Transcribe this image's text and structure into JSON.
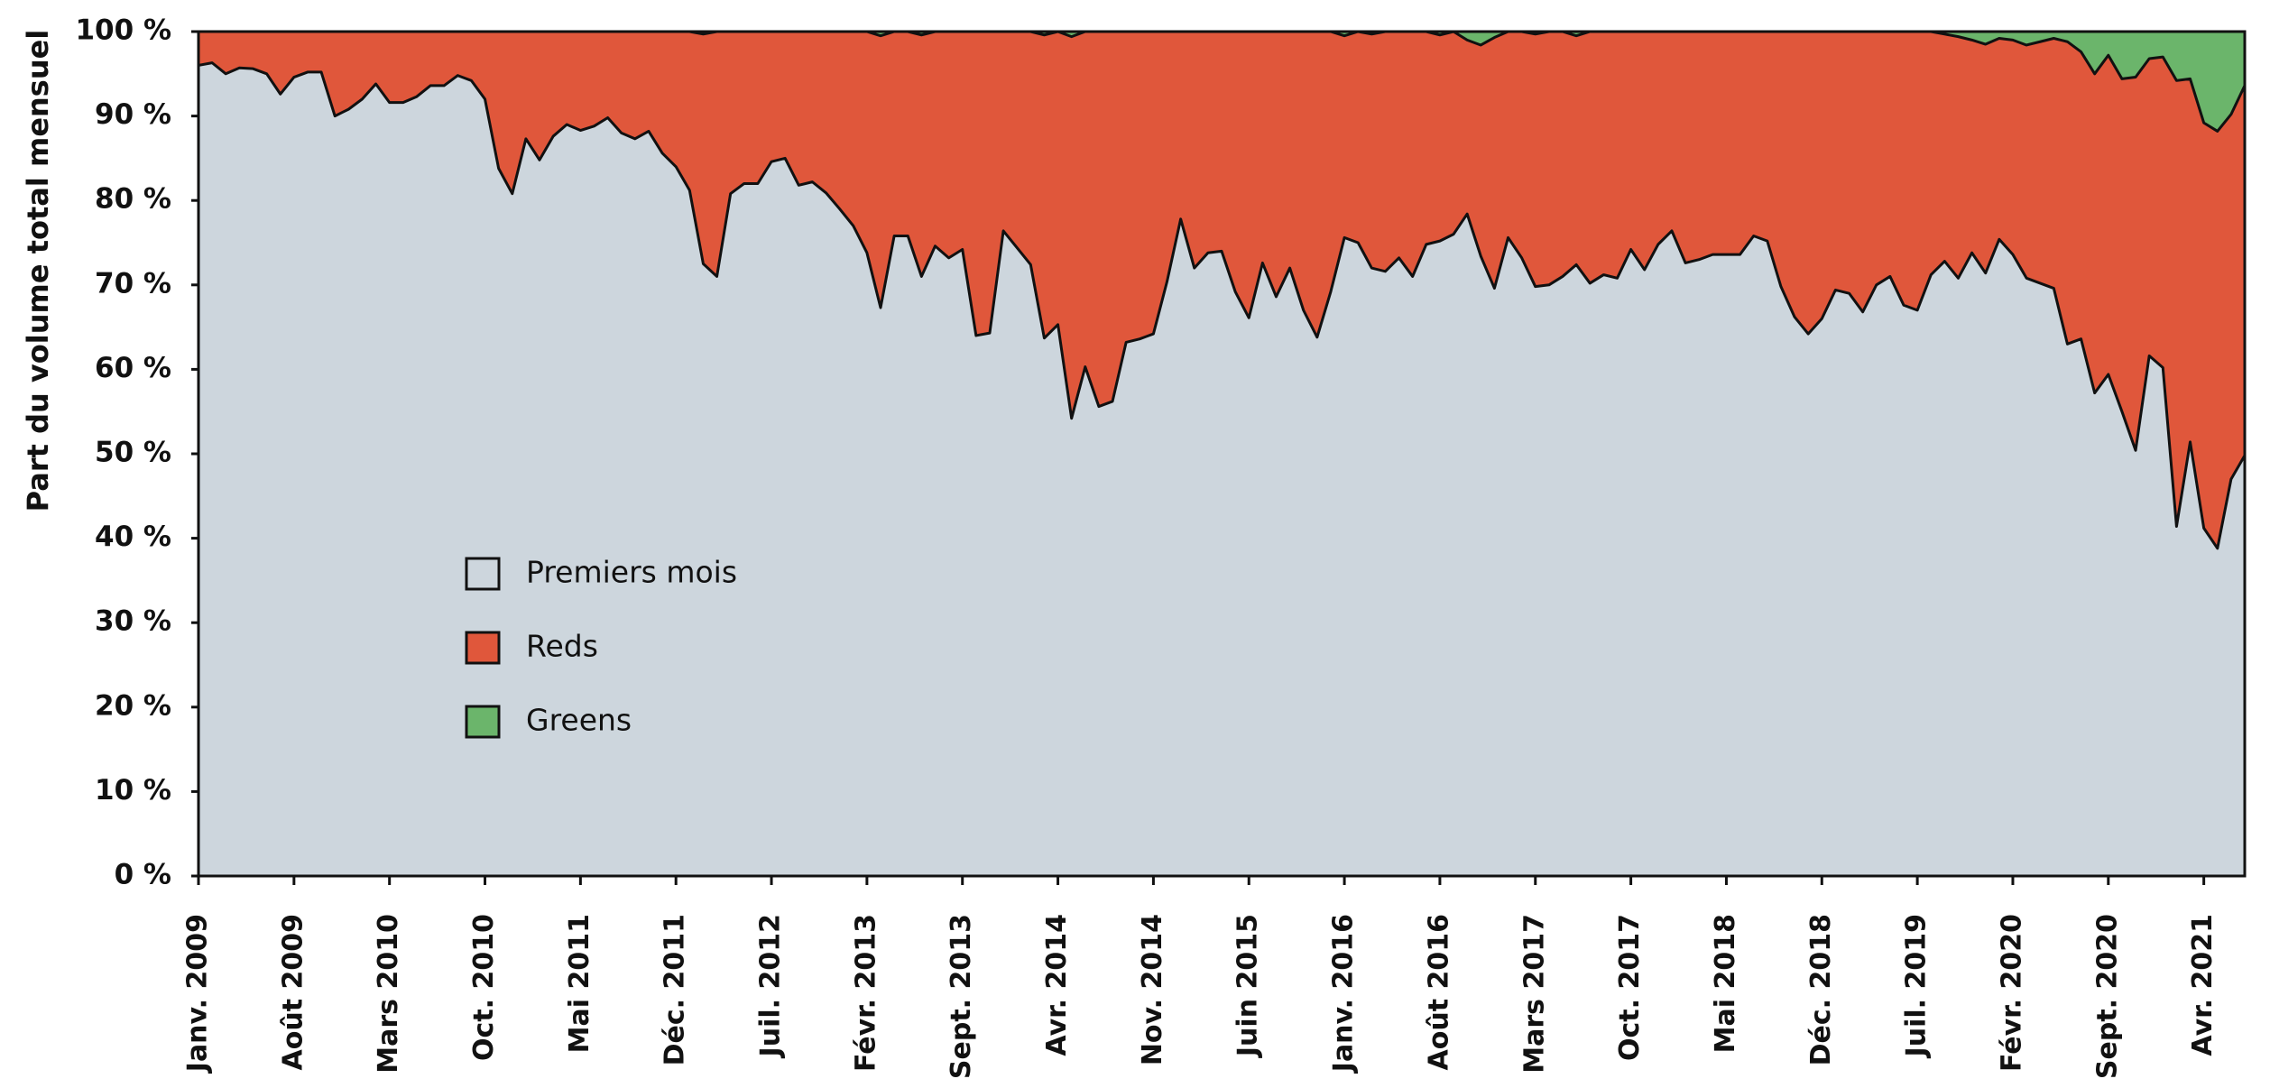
{
  "chart_data": {
    "type": "stacked_area",
    "y_label": "Part du volume total mensuel",
    "ylim": [
      0,
      100
    ],
    "yticks": [
      {
        "value": 0,
        "label": "0 %"
      },
      {
        "value": 10,
        "label": "10 %"
      },
      {
        "value": 20,
        "label": "20 %"
      },
      {
        "value": 30,
        "label": "30 %"
      },
      {
        "value": 40,
        "label": "40 %"
      },
      {
        "value": 50,
        "label": "50 %"
      },
      {
        "value": 60,
        "label": "60 %"
      },
      {
        "value": 70,
        "label": "70 %"
      },
      {
        "value": 80,
        "label": "80 %"
      },
      {
        "value": 90,
        "label": "90 %"
      },
      {
        "value": 100,
        "label": "100 %"
      }
    ],
    "categories": [
      "Janv. 2009",
      null,
      null,
      null,
      null,
      null,
      null,
      "Août 2009",
      null,
      null,
      null,
      null,
      null,
      null,
      "Mars 2010",
      null,
      null,
      null,
      null,
      null,
      null,
      "Oct. 2010",
      null,
      null,
      null,
      null,
      null,
      null,
      "Mai 2011",
      null,
      null,
      null,
      null,
      null,
      null,
      "Déc. 2011",
      null,
      null,
      null,
      null,
      null,
      null,
      "Juil. 2012",
      null,
      null,
      null,
      null,
      null,
      null,
      "Févr. 2013",
      null,
      null,
      null,
      null,
      null,
      null,
      "Sept. 2013",
      null,
      null,
      null,
      null,
      null,
      null,
      "Avr. 2014",
      null,
      null,
      null,
      null,
      null,
      null,
      "Nov. 2014",
      null,
      null,
      null,
      null,
      null,
      null,
      "Juin 2015",
      null,
      null,
      null,
      null,
      null,
      null,
      "Janv. 2016",
      null,
      null,
      null,
      null,
      null,
      null,
      "Août 2016",
      null,
      null,
      null,
      null,
      null,
      null,
      "Mars 2017",
      null,
      null,
      null,
      null,
      null,
      null,
      "Oct. 2017",
      null,
      null,
      null,
      null,
      null,
      null,
      "Mai 2018",
      null,
      null,
      null,
      null,
      null,
      null,
      "Déc. 2018",
      null,
      null,
      null,
      null,
      null,
      null,
      "Juil. 2019",
      null,
      null,
      null,
      null,
      null,
      null,
      "Févr. 2020",
      null,
      null,
      null,
      null,
      null,
      null,
      "Sept. 2020",
      null,
      null,
      null,
      null,
      null,
      null,
      "Avr. 2021",
      null,
      null,
      null
    ],
    "series": [
      {
        "name": "Premiers mois",
        "color": "#cdd6dd",
        "values": [
          96,
          96.3,
          95,
          95.7,
          95.6,
          95,
          92.6,
          94.6,
          95.2,
          95.2,
          90,
          90.8,
          92,
          93.8,
          91.6,
          91.6,
          92.3,
          93.6,
          93.6,
          94.8,
          94.2,
          92,
          83.8,
          80.8,
          87.3,
          84.8,
          87.6,
          89,
          88.3,
          88.8,
          89.8,
          88,
          87.3,
          88.2,
          85.6,
          84,
          81.2,
          72.5,
          71,
          80.8,
          82,
          82,
          84.6,
          85,
          81.8,
          82.2,
          80.9,
          79,
          77,
          73.8,
          67.3,
          75.8,
          75.8,
          71,
          74.6,
          73.2,
          74.2,
          64,
          64.3,
          76.4,
          74.4,
          72.4,
          63.7,
          65.3,
          54.2,
          60.3,
          55.6,
          56.2,
          63.2,
          63.6,
          64.2,
          70.4,
          77.8,
          72,
          73.8,
          74,
          69.2,
          66.1,
          72.6,
          68.6,
          72,
          67,
          63.8,
          69.2,
          75.6,
          75,
          72,
          71.6,
          73.2,
          71,
          74.8,
          75.2,
          76,
          78.4,
          73.4,
          69.6,
          75.6,
          73.2,
          69.8,
          70,
          71,
          72.4,
          70.2,
          71.2,
          70.8,
          74.2,
          71.8,
          74.8,
          76.4,
          72.6,
          73,
          73.6,
          73.6,
          73.6,
          75.8,
          75.2,
          69.8,
          66.2,
          64.2,
          66,
          69.4,
          69,
          66.8,
          70,
          71,
          67.6,
          67,
          71.2,
          72.8,
          70.8,
          73.8,
          71.4,
          75.4,
          73.6,
          70.8,
          70.2,
          69.6,
          63,
          63.6,
          57.2,
          59.4,
          55,
          50.4,
          61.6,
          60.2,
          41.4,
          51.4,
          41.2,
          38.8,
          47,
          49.8
        ]
      },
      {
        "name": "Reds",
        "color": "#e0573b",
        "values": [
          4,
          3.7,
          5,
          4.3,
          4.4,
          5,
          7.4,
          5.4,
          4.8,
          4.8,
          10,
          9.2,
          8,
          6.2,
          8.4,
          8.4,
          7.7,
          6.4,
          6.4,
          5.2,
          5.8,
          8,
          16.2,
          19.2,
          12.7,
          15.2,
          12.4,
          11,
          11.7,
          11.2,
          10.2,
          12,
          12.7,
          11.8,
          14.4,
          16,
          18.8,
          27.2,
          29,
          19.2,
          18,
          18,
          15.4,
          15,
          18.2,
          17.8,
          19.1,
          21,
          23,
          26.2,
          32.2,
          24.2,
          24.2,
          28.6,
          25.4,
          26.8,
          25.8,
          36,
          35.7,
          23.6,
          25.6,
          27.6,
          35.9,
          34.7,
          45.2,
          39.7,
          44.4,
          43.8,
          36.8,
          36.4,
          35.8,
          29.6,
          22.2,
          28,
          26.2,
          26,
          30.8,
          33.9,
          27.4,
          31.4,
          28,
          33,
          36.2,
          30.8,
          23.9,
          25,
          27.7,
          28.4,
          26.8,
          29,
          25.2,
          24.4,
          24,
          20.6,
          25,
          29.7,
          24.4,
          26.8,
          29.9,
          30,
          29,
          27.1,
          29.8,
          28.8,
          29.2,
          25.8,
          28.2,
          25.2,
          23.6,
          27.4,
          27,
          26.4,
          26.4,
          26.4,
          24.2,
          24.8,
          30.2,
          33.8,
          35.8,
          34,
          30.6,
          31,
          33.2,
          30,
          29,
          32.4,
          33,
          28.8,
          26.9,
          28.6,
          25.2,
          27.1,
          23.8,
          25.4,
          27.6,
          28.6,
          29.6,
          35.8,
          34,
          37.8,
          37.8,
          39.4,
          44.2,
          35.2,
          36.8,
          52.8,
          43,
          48,
          49.4,
          43.2,
          43.8
        ]
      },
      {
        "name": "Greens",
        "color": "#6bb56b",
        "values": [
          0,
          0,
          0,
          0,
          0,
          0,
          0,
          0,
          0,
          0,
          0,
          0,
          0,
          0,
          0,
          0,
          0,
          0,
          0,
          0,
          0,
          0,
          0,
          0,
          0,
          0,
          0,
          0,
          0,
          0,
          0,
          0,
          0,
          0,
          0,
          0,
          0,
          0.3,
          0,
          0,
          0,
          0,
          0,
          0,
          0,
          0,
          0,
          0,
          0,
          0,
          0.5,
          0,
          0,
          0.4,
          0,
          0,
          0,
          0,
          0,
          0,
          0,
          0,
          0.4,
          0,
          0.6,
          0,
          0,
          0,
          0,
          0,
          0,
          0,
          0,
          0,
          0,
          0,
          0,
          0,
          0,
          0,
          0,
          0,
          0,
          0,
          0.5,
          0,
          0.3,
          0,
          0,
          0,
          0,
          0.4,
          0,
          1,
          1.6,
          0.7,
          0,
          0,
          0.3,
          0,
          0,
          0.5,
          0,
          0,
          0,
          0,
          0,
          0,
          0,
          0,
          0,
          0,
          0,
          0,
          0,
          0,
          0,
          0,
          0,
          0,
          0,
          0,
          0,
          0,
          0,
          0,
          0,
          0,
          0.3,
          0.6,
          1,
          1.5,
          0.8,
          1,
          1.6,
          1.2,
          0.8,
          1.2,
          2.4,
          5,
          2.8,
          5.6,
          5.4,
          3.2,
          3,
          5.8,
          5.6,
          10.8,
          11.8,
          9.8,
          6.4
        ]
      }
    ]
  }
}
